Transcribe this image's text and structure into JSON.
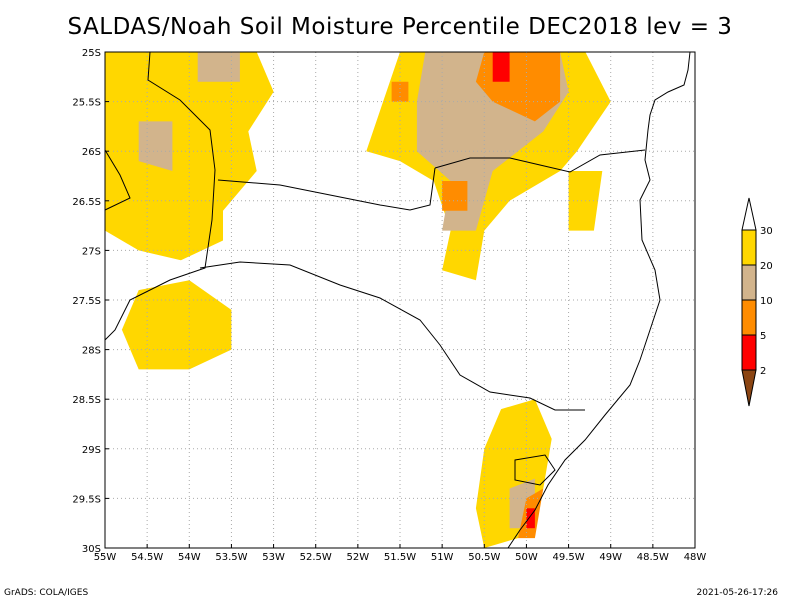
{
  "title": "SALDAS/Noah Soil Moisture Percentile DEC2018 lev = 3",
  "footer_left": "GrADS: COLA/IGES",
  "footer_right": "2021-05-26-17:26",
  "chart_data": {
    "type": "heatmap",
    "x_ticks": [
      "55W",
      "54.5W",
      "54W",
      "53.5W",
      "53W",
      "52.5W",
      "52W",
      "51.5W",
      "51W",
      "50.5W",
      "50W",
      "49.5W",
      "49W",
      "48.5W",
      "48W"
    ],
    "y_ticks": [
      "25S",
      "25.5S",
      "26S",
      "26.5S",
      "27S",
      "27.5S",
      "28S",
      "28.5S",
      "29S",
      "29.5S",
      "30S"
    ],
    "xlim": [
      -55,
      -48
    ],
    "ylim": [
      -30,
      -25
    ],
    "grid": true,
    "legend": {
      "placement": "right",
      "levels": [
        {
          "label": "30",
          "color": "#ffffff"
        },
        {
          "label": "20",
          "color": "#ffd700"
        },
        {
          "label": "10",
          "color": "#d2b48c"
        },
        {
          "label": "5",
          "color": "#ff8c00"
        },
        {
          "label": "2",
          "color": "#ff0000"
        },
        {
          "label": "",
          "color": "#8b4513"
        }
      ]
    },
    "regions": [
      {
        "class": "20-30",
        "color": "#ffd700",
        "points": [
          [
            -55,
            -25
          ],
          [
            -53.2,
            -25
          ],
          [
            -53.0,
            -25.4
          ],
          [
            -53.3,
            -25.8
          ],
          [
            -53.2,
            -26.2
          ],
          [
            -53.6,
            -26.6
          ],
          [
            -53.6,
            -26.9
          ],
          [
            -54.1,
            -27.1
          ],
          [
            -54.6,
            -27.0
          ],
          [
            -55,
            -26.8
          ]
        ]
      },
      {
        "class": "20-30",
        "color": "#ffd700",
        "points": [
          [
            -54.6,
            -27.4
          ],
          [
            -54.0,
            -27.3
          ],
          [
            -53.5,
            -27.6
          ],
          [
            -53.5,
            -28.0
          ],
          [
            -54.0,
            -28.2
          ],
          [
            -54.6,
            -28.2
          ],
          [
            -54.8,
            -27.8
          ]
        ]
      },
      {
        "class": "20-30",
        "color": "#ffd700",
        "points": [
          [
            -51.5,
            -25
          ],
          [
            -49.3,
            -25
          ],
          [
            -49.0,
            -25.5
          ],
          [
            -49.4,
            -26.0
          ],
          [
            -49.6,
            -26.2
          ],
          [
            -50.2,
            -26.5
          ],
          [
            -50.5,
            -26.8
          ],
          [
            -50.6,
            -27.3
          ],
          [
            -51.0,
            -27.2
          ],
          [
            -50.9,
            -26.8
          ],
          [
            -51.1,
            -26.3
          ],
          [
            -51.5,
            -26.1
          ],
          [
            -51.9,
            -26.0
          ],
          [
            -51.7,
            -25.5
          ]
        ]
      },
      {
        "class": "20-30",
        "color": "#ffd700",
        "points": [
          [
            -49.5,
            -26.2
          ],
          [
            -49.1,
            -26.2
          ],
          [
            -49.2,
            -26.8
          ],
          [
            -49.5,
            -26.8
          ]
        ]
      },
      {
        "class": "20-30",
        "color": "#ffd700",
        "points": [
          [
            -50.3,
            -28.6
          ],
          [
            -49.9,
            -28.5
          ],
          [
            -49.7,
            -28.9
          ],
          [
            -49.8,
            -29.4
          ],
          [
            -50.0,
            -29.6
          ],
          [
            -50.1,
            -29.9
          ],
          [
            -50.5,
            -30
          ],
          [
            -50.6,
            -29.6
          ],
          [
            -50.5,
            -29.0
          ]
        ]
      },
      {
        "class": "10-20",
        "color": "#d2b48c",
        "points": [
          [
            -51.2,
            -25
          ],
          [
            -49.6,
            -25
          ],
          [
            -49.5,
            -25.4
          ],
          [
            -49.8,
            -25.8
          ],
          [
            -50.1,
            -26.0
          ],
          [
            -50.4,
            -26.2
          ],
          [
            -50.6,
            -26.8
          ],
          [
            -51.0,
            -26.8
          ],
          [
            -50.9,
            -26.3
          ],
          [
            -51.3,
            -26.0
          ],
          [
            -51.3,
            -25.5
          ]
        ]
      },
      {
        "class": "10-20",
        "color": "#d2b48c",
        "points": [
          [
            -54.6,
            -25.7
          ],
          [
            -54.2,
            -25.7
          ],
          [
            -54.2,
            -26.2
          ],
          [
            -54.6,
            -26.1
          ]
        ]
      },
      {
        "class": "10-20",
        "color": "#d2b48c",
        "points": [
          [
            -53.9,
            -25.0
          ],
          [
            -53.4,
            -25.0
          ],
          [
            -53.4,
            -25.3
          ],
          [
            -53.9,
            -25.3
          ]
        ]
      },
      {
        "class": "10-20",
        "color": "#d2b48c",
        "points": [
          [
            -50.2,
            -29.4
          ],
          [
            -49.9,
            -29.3
          ],
          [
            -49.9,
            -29.8
          ],
          [
            -50.2,
            -29.8
          ]
        ]
      },
      {
        "class": "5-10",
        "color": "#ff8c00",
        "points": [
          [
            -50.5,
            -25.0
          ],
          [
            -49.6,
            -25.0
          ],
          [
            -49.6,
            -25.5
          ],
          [
            -49.9,
            -25.7
          ],
          [
            -50.4,
            -25.5
          ],
          [
            -50.6,
            -25.3
          ]
        ]
      },
      {
        "class": "5-10",
        "color": "#ff8c00",
        "points": [
          [
            -51.0,
            -26.3
          ],
          [
            -50.7,
            -26.3
          ],
          [
            -50.7,
            -26.6
          ],
          [
            -51.0,
            -26.6
          ]
        ]
      },
      {
        "class": "5-10",
        "color": "#ff8c00",
        "points": [
          [
            -51.6,
            -25.3
          ],
          [
            -51.4,
            -25.3
          ],
          [
            -51.4,
            -25.5
          ],
          [
            -51.6,
            -25.5
          ]
        ]
      },
      {
        "class": "5-10",
        "color": "#ff8c00",
        "points": [
          [
            -50.0,
            -29.5
          ],
          [
            -49.8,
            -29.4
          ],
          [
            -49.9,
            -29.9
          ],
          [
            -50.1,
            -29.9
          ]
        ]
      },
      {
        "class": "2-5",
        "color": "#ff0000",
        "points": [
          [
            -50.4,
            -25.0
          ],
          [
            -50.2,
            -25.0
          ],
          [
            -50.2,
            -25.3
          ],
          [
            -50.4,
            -25.3
          ]
        ]
      },
      {
        "class": "2-5",
        "color": "#ff0000",
        "points": [
          [
            -50.0,
            -29.6
          ],
          [
            -49.9,
            -29.6
          ],
          [
            -49.9,
            -29.8
          ],
          [
            -50.0,
            -29.8
          ]
        ]
      }
    ]
  }
}
